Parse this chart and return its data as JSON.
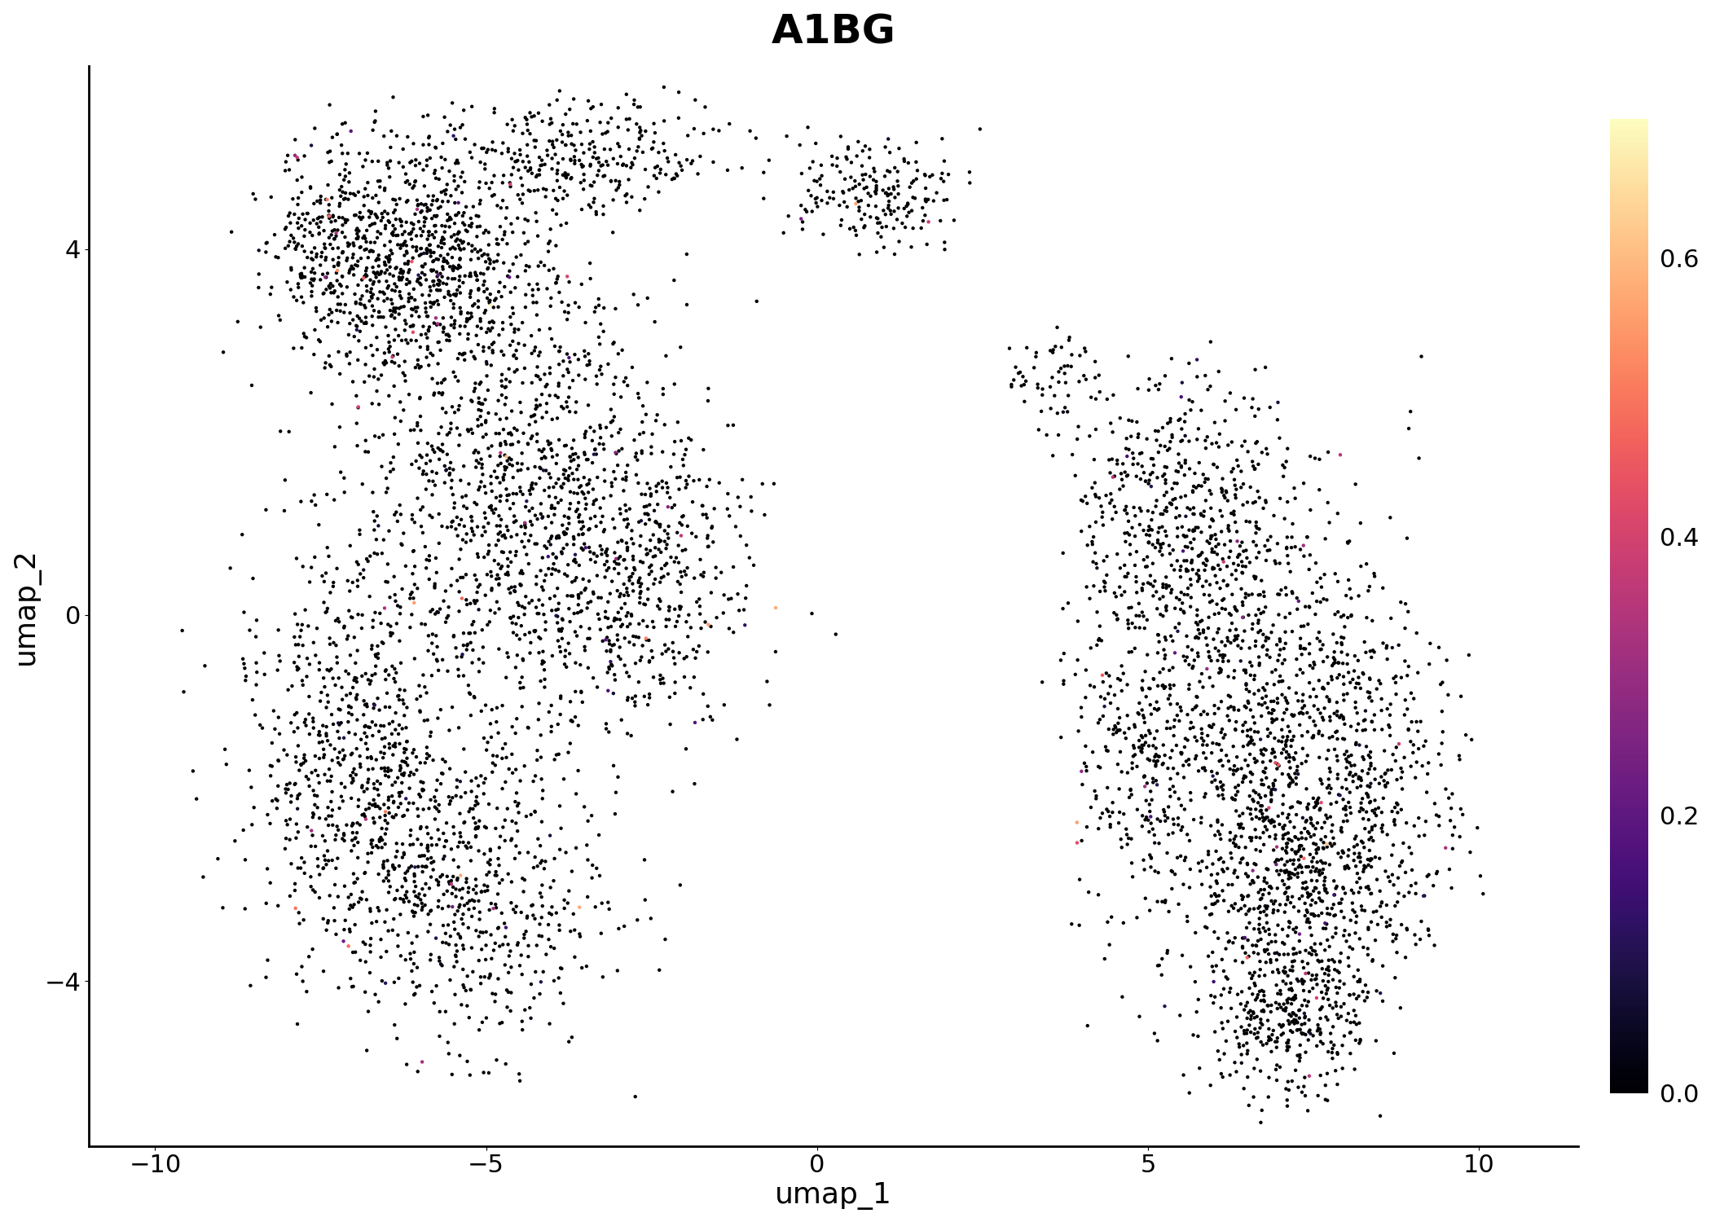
{
  "title": "A1BG",
  "xlabel": "umap_1",
  "ylabel": "umap_2",
  "xlim": [
    -11,
    11.5
  ],
  "ylim": [
    -5.8,
    6.0
  ],
  "xticks": [
    -10,
    -5,
    0,
    5,
    10
  ],
  "yticks": [
    -4,
    0,
    4
  ],
  "colormap": "magma",
  "vmin": 0.0,
  "vmax": 0.7,
  "cbar_ticks": [
    0.0,
    0.2,
    0.4,
    0.6
  ],
  "cbar_labels": [
    "0.0",
    "0.2",
    "0.4",
    "0.6"
  ],
  "point_size": 10,
  "alpha": 1.0,
  "title_fontsize": 36,
  "label_fontsize": 26,
  "tick_fontsize": 22,
  "cbar_fontsize": 22,
  "seed": 42
}
